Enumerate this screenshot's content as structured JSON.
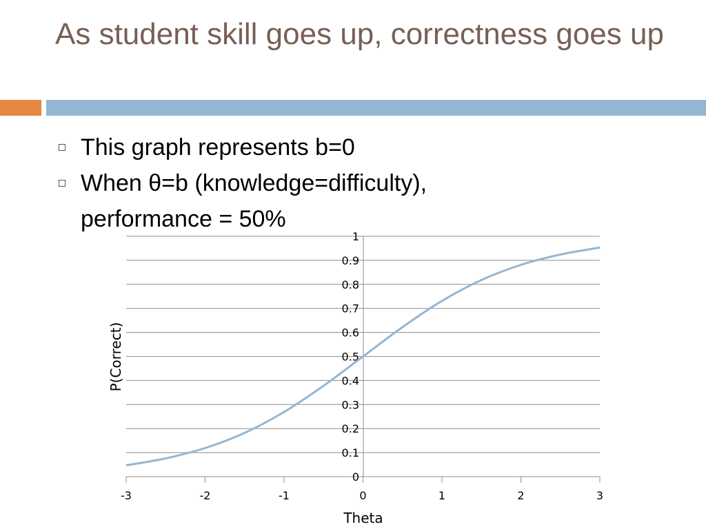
{
  "slide": {
    "title": "As student skill goes up, correctness goes up",
    "bullets": [
      "This graph represents b=0",
      "When θ=b (knowledge=difficulty), performance = 50%"
    ],
    "colors": {
      "title": "#775F55",
      "accent_orange": "#E48644",
      "accent_blue": "#94B6D2",
      "curve": "#94B6D2"
    }
  },
  "chart_data": {
    "type": "line",
    "xlabel": "Theta",
    "ylabel": "P(Correct)",
    "xlim": [
      -3,
      3
    ],
    "ylim": [
      0,
      1
    ],
    "x_ticks": [
      -3,
      -2,
      -1,
      0,
      1,
      2,
      3
    ],
    "y_ticks": [
      0,
      0.1,
      0.2,
      0.3,
      0.4,
      0.5,
      0.6,
      0.7,
      0.8,
      0.9,
      1
    ],
    "grid": "horizontal",
    "series": [
      {
        "x": [
          -3,
          -2.5,
          -2,
          -1.5,
          -1,
          -0.5,
          0,
          0.5,
          1,
          1.5,
          2,
          2.5,
          3
        ],
        "y": [
          0.047,
          0.076,
          0.119,
          0.182,
          0.269,
          0.378,
          0.5,
          0.622,
          0.731,
          0.818,
          0.881,
          0.924,
          0.953
        ]
      }
    ]
  }
}
